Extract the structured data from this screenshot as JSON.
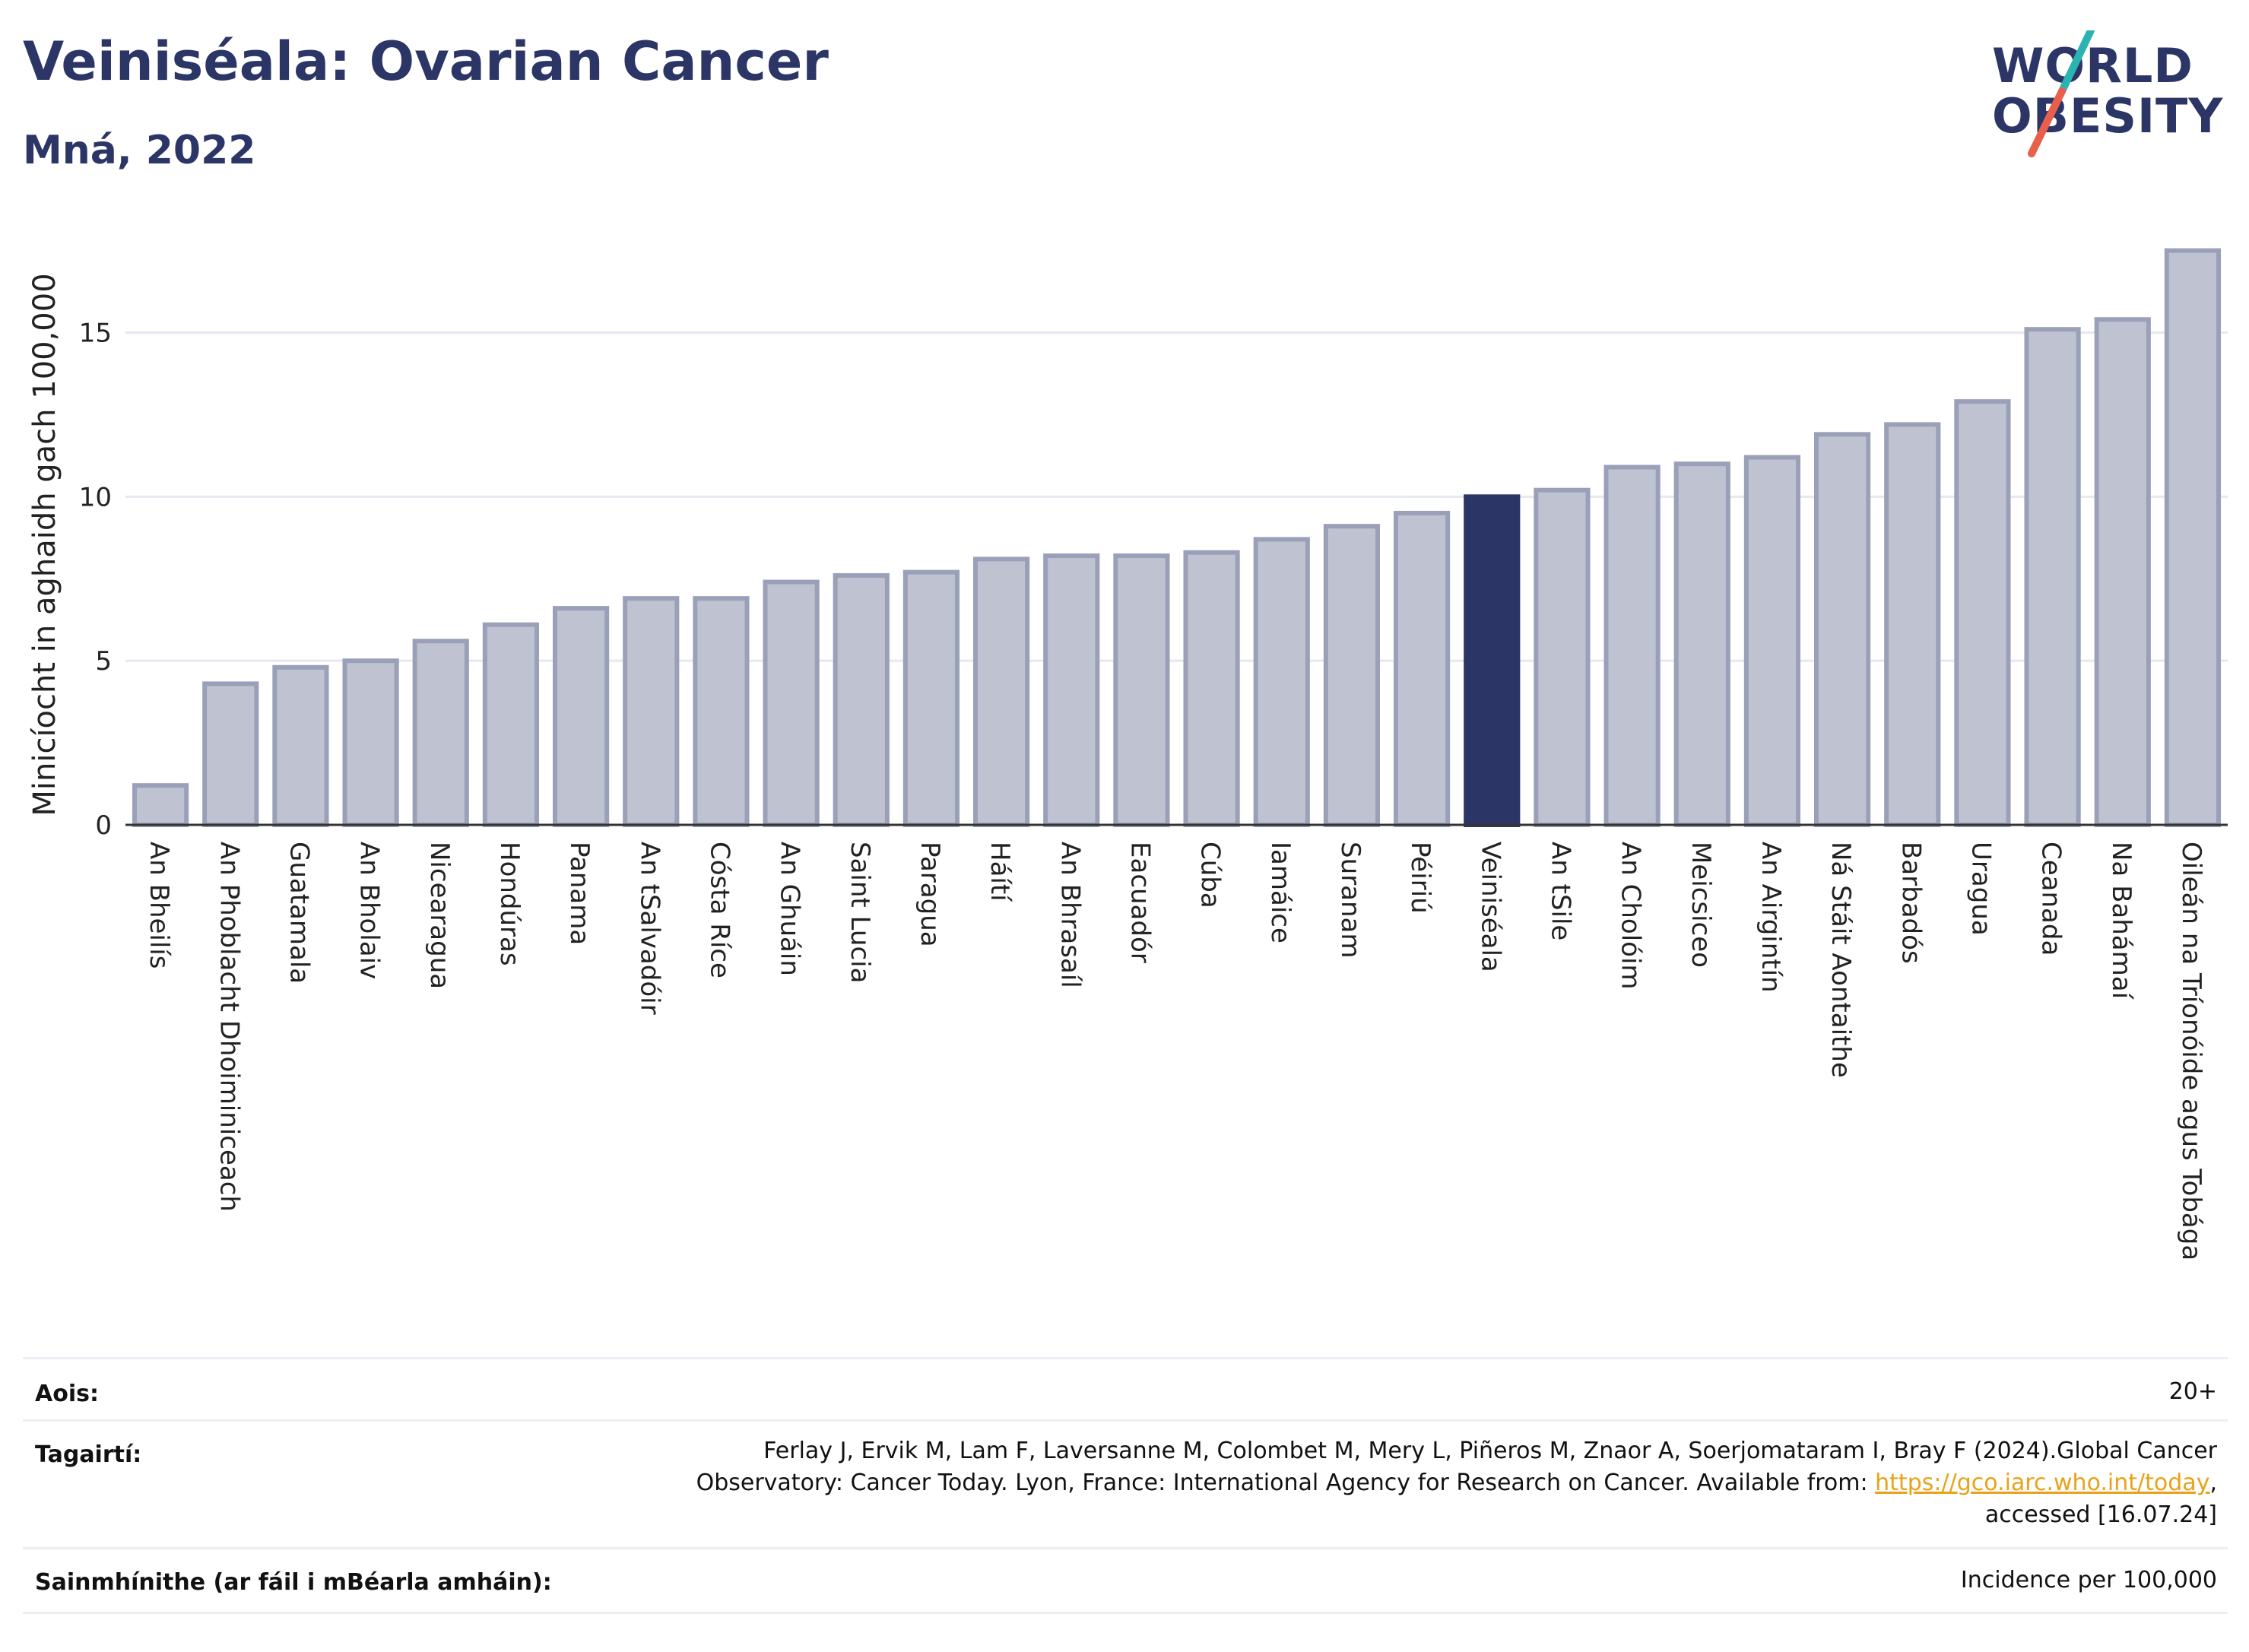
{
  "header": {
    "title": "Veiniséala: Ovarian Cancer",
    "subtitle": "Mná, 2022"
  },
  "logo": {
    "line1": "WORLD",
    "line2": "OBESITY",
    "colors": {
      "navy": "#2b3566",
      "teal": "#2bb3b1",
      "coral": "#e8604c"
    }
  },
  "chart_data": {
    "type": "bar",
    "ylabel": "Minicíocht in aghaidh gach 100,000",
    "ylim": [
      0,
      18
    ],
    "yticks": [
      0,
      5,
      10,
      15
    ],
    "grid": true,
    "highlight": "Veiniséala",
    "colors": {
      "bar": "#bfc3d1",
      "bar_stroke": "#9aa0b8",
      "highlight": "#2b3566"
    },
    "categories": [
      "An Bheilís",
      "An Phoblacht Dhoiminiceach",
      "Guatamala",
      "An Bholaiv",
      "Nicearagua",
      "Hondúras",
      "Panama",
      "An tSalvadóir",
      "Cósta Ríce",
      "An Ghuáin",
      "Saint Lucia",
      "Paragua",
      "Háítí",
      "An Bhrasaíl",
      "Eacuadór",
      "Cúba",
      "Iamáice",
      "Suranam",
      "Péiriú",
      "Veiniséala",
      "An tSile",
      "An Cholóim",
      "Meicsiceo",
      "An Airgintín",
      "Ná Stáit Aontaithe",
      "Barbadós",
      "Uragua",
      "Ceanada",
      "Na Bahámaí",
      "Oileán na Tríonóide agus Tobága"
    ],
    "values": [
      1.2,
      4.3,
      4.8,
      5.0,
      5.6,
      6.1,
      6.6,
      6.9,
      6.9,
      7.4,
      7.6,
      7.7,
      8.1,
      8.2,
      8.2,
      8.3,
      8.7,
      9.1,
      9.5,
      10.0,
      10.2,
      10.9,
      11.0,
      11.2,
      11.9,
      12.2,
      12.9,
      15.1,
      15.4,
      17.5
    ]
  },
  "footer": {
    "age_label": "Aois:",
    "age_value": "20+",
    "refs_label": "Tagairtí:",
    "refs_line1": "Ferlay J, Ervik M, Lam F, Laversanne M, Colombet M, Mery L, Piñeros M, Znaor A, Soerjomataram I, Bray F (2024).Global Cancer",
    "refs_line2_pre": "Observatory: Cancer Today. Lyon, France: International Agency for Research on Cancer. Available from: ",
    "refs_link": "https://gco.iarc.who.int/today",
    "refs_line2_post": ",",
    "refs_line3": "accessed [16.07.24]",
    "defs_label": "Sainmhínithe (ar fáil i mBéarla amháin):",
    "defs_value": "Incidence per 100,000"
  }
}
